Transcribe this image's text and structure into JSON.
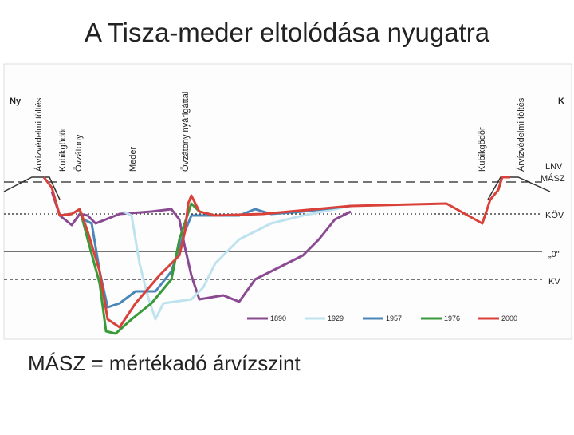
{
  "title": "A Tisza-meder eltolódása nyugatra",
  "figure": {
    "west": "Ny",
    "east": "K",
    "features": [
      "Árvízvédelmi töltés",
      "Kubikgödör",
      "Övzátony",
      "Meder",
      "Övzátony nyárigáttal",
      "Kubikgödör",
      "Árvízvédelmi töltés"
    ],
    "levels": [
      "LNV",
      "MÁSZ",
      "KÖV",
      "„0\"",
      "KV"
    ],
    "legend": [
      "1890",
      "1929",
      "1957",
      "1976",
      "2000"
    ]
  },
  "caption": "MÁSZ = mértékadó árvízszint"
}
